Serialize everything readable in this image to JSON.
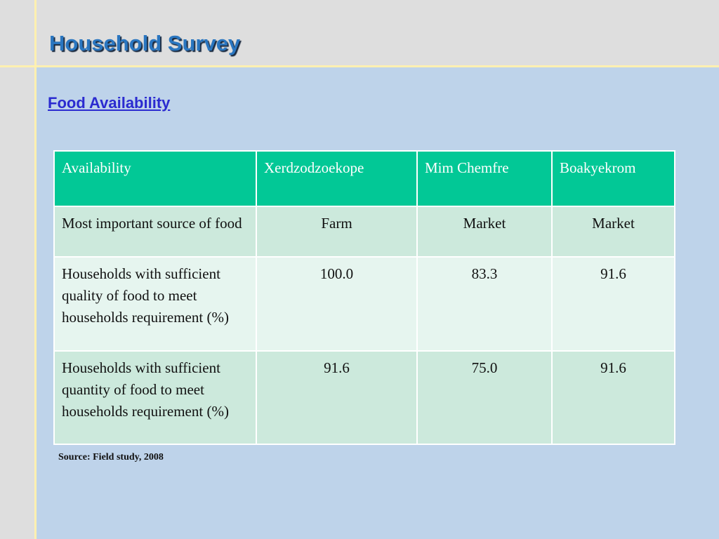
{
  "slide": {
    "title": "Household Survey",
    "subtitle": "Food Availability",
    "source": "Source: Field study, 2008"
  },
  "table": {
    "headers": [
      "Availability",
      "Xerdzodzoekope",
      "Mim Chemfre",
      "Boakyekrom"
    ],
    "rows": [
      [
        "Most important source of food",
        "Farm",
        "Market",
        "Market"
      ],
      [
        "Households with sufficient quality of food to meet households requirement (%)",
        "100.0",
        "83.3",
        "91.6"
      ],
      [
        "Households with sufficient quantity of food to meet households requirement (%)",
        "91.6",
        "75.0",
        "91.6"
      ]
    ]
  },
  "colors": {
    "header": "#02c896",
    "background": "#bed3ea",
    "title": "#2a76c0",
    "subtitle": "#2b2bd0"
  }
}
